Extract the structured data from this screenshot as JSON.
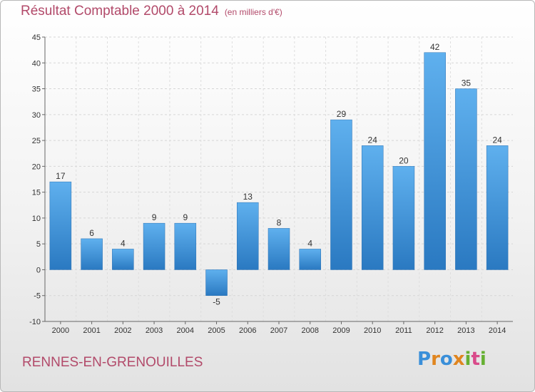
{
  "chart_data": {
    "type": "bar",
    "title": "Résultat Comptable 2000 à 2014",
    "subtitle": "(en milliers d'€)",
    "categories": [
      "2000",
      "2001",
      "2002",
      "2003",
      "2004",
      "2005",
      "2006",
      "2007",
      "2008",
      "2009",
      "2010",
      "2011",
      "2012",
      "2013",
      "2014"
    ],
    "values": [
      17,
      6,
      4,
      9,
      9,
      -5,
      13,
      8,
      4,
      29,
      24,
      20,
      42,
      35,
      24
    ],
    "ylim": [
      -10,
      45
    ],
    "yticks": [
      -10,
      -5,
      0,
      5,
      10,
      15,
      20,
      25,
      30,
      35,
      40,
      45
    ],
    "xlabel": "",
    "ylabel": "",
    "grid": true,
    "bar_color": "#3d8fd6"
  },
  "footer": {
    "city": "RENNES-EN-GRENOUILLES",
    "logo_letters": [
      "P",
      "r",
      "o",
      "x",
      "i",
      "t",
      "i"
    ],
    "logo_colors": [
      "#3a8fd9",
      "#e0851f",
      "#3a8fd9",
      "#e0851f",
      "#66b032",
      "#d94a8a",
      "#66b032"
    ]
  }
}
